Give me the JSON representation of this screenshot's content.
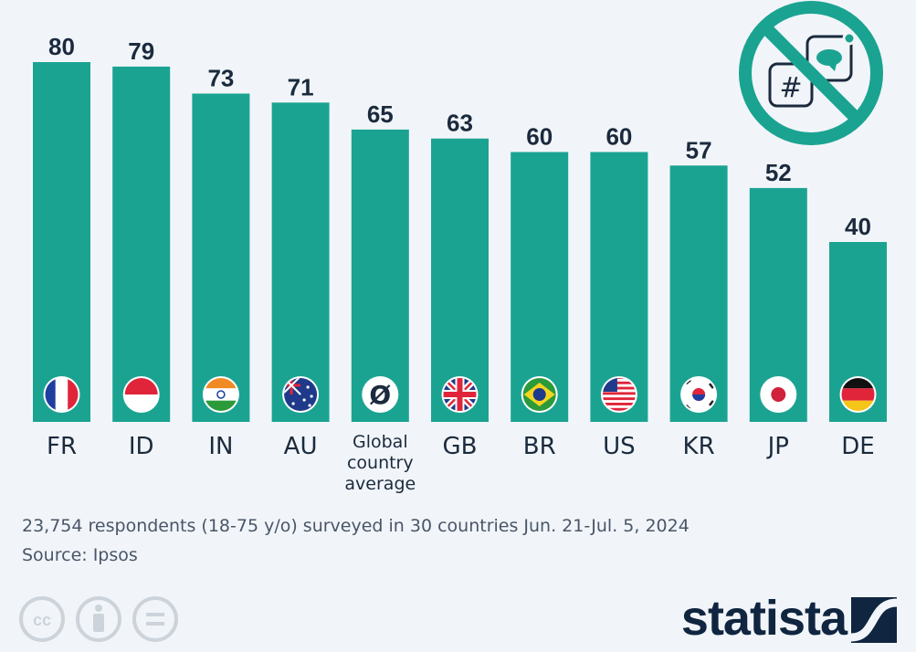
{
  "chart_data": {
    "type": "bar",
    "categories": [
      "FR",
      "ID",
      "IN",
      "AU",
      "Global country average",
      "GB",
      "BR",
      "US",
      "KR",
      "JP",
      "DE"
    ],
    "category_lines": [
      [
        "FR"
      ],
      [
        "ID"
      ],
      [
        "IN"
      ],
      [
        "AU"
      ],
      [
        "Global",
        "country",
        "average"
      ],
      [
        "GB"
      ],
      [
        "BR"
      ],
      [
        "US"
      ],
      [
        "KR"
      ],
      [
        "JP"
      ],
      [
        "DE"
      ]
    ],
    "values": [
      80,
      79,
      73,
      71,
      65,
      63,
      60,
      60,
      57,
      52,
      40
    ],
    "value_labels": [
      "80",
      "79",
      "73",
      "71",
      "65",
      "63",
      "60",
      "60",
      "57",
      "52",
      "40"
    ],
    "ylim": [
      0,
      80
    ],
    "grid": false,
    "bar_color": "#1ba392",
    "average_symbol": "Ø"
  },
  "footer": {
    "note": "23,754 respondents (18-75 y/o) surveyed in 30 countries Jun. 21-Jul. 5, 2024",
    "source": "Source: Ipsos",
    "logo": "statista",
    "license_icons": [
      "cc",
      "by",
      "nd"
    ]
  },
  "colors": {
    "bar": "#1ba392",
    "text": "#1b2a3d",
    "background": "#f1f5f9",
    "muted": "#cdd3da"
  }
}
